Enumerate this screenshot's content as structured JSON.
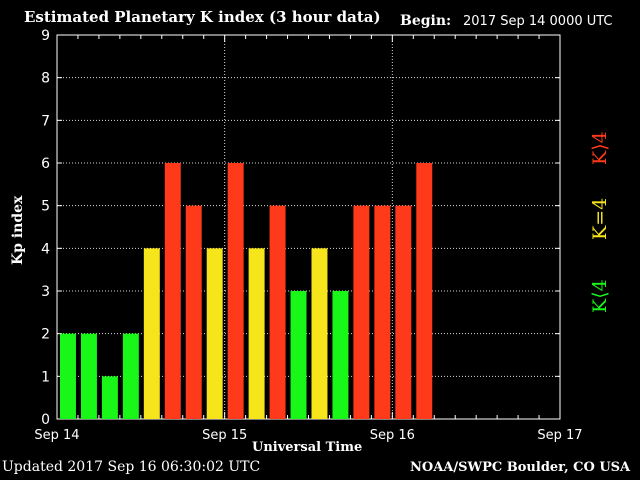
{
  "header": {
    "title": "Estimated Planetary K index (3 hour data)",
    "begin_label": "Begin:",
    "begin_value": "2017 Sep 14 0000 UTC"
  },
  "footer": {
    "updated": "Updated 2017 Sep 16 06:30:02 UTC",
    "credit": "NOAA/SWPC Boulder, CO USA"
  },
  "legend": {
    "below": "K⟨4",
    "equal": "K=4",
    "above": "K⟩4"
  },
  "colors": {
    "below": "#19f719",
    "equal": "#f7e51c",
    "above": "#ff3a1a",
    "background": "#000000",
    "axes": "#ffffff"
  },
  "chart_data": {
    "type": "bar",
    "title": "Estimated Planetary K index (3 hour data)",
    "xlabel": "Universal Time",
    "ylabel": "Kp index",
    "ylim": [
      0,
      9
    ],
    "yticks": [
      0,
      1,
      2,
      3,
      4,
      5,
      6,
      7,
      8,
      9
    ],
    "xticks": [
      "Sep 14",
      "Sep 15",
      "Sep 16",
      "Sep 17"
    ],
    "grid": true,
    "interval_hours": 3,
    "start": "2017 Sep 14 0000 UTC",
    "values": [
      2,
      2,
      1,
      2,
      4,
      6,
      5,
      4,
      6,
      4,
      5,
      3,
      4,
      3,
      5,
      5,
      5,
      6
    ]
  }
}
